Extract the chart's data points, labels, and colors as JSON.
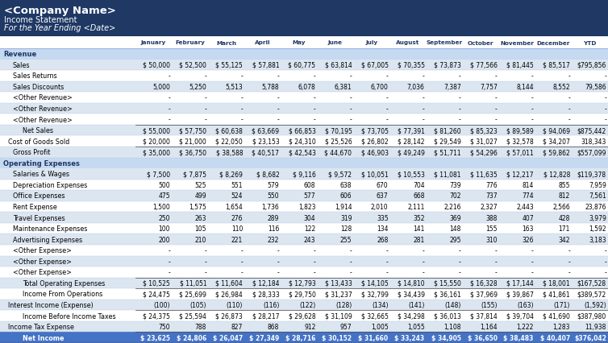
{
  "title1": "<Company Name>",
  "title2": "Income Statement",
  "title3": "For the Year Ending <Date>",
  "header_bg": "#1F3864",
  "header_text": "#FFFFFF",
  "columns": [
    "",
    "January",
    "February",
    "March",
    "April",
    "May",
    "June",
    "July",
    "August",
    "September",
    "October",
    "November",
    "December",
    "YTD"
  ],
  "section_bg": "#C5D9F1",
  "net_income_bg": "#4472C4",
  "rows": [
    {
      "label": "Revenue",
      "type": "section",
      "indent": 0,
      "values": []
    },
    {
      "label": "Sales",
      "type": "data",
      "indent": 2,
      "values": [
        "$ 50,000",
        "$ 52,500",
        "$ 55,125",
        "$ 57,881",
        "$ 60,775",
        "$ 63,814",
        "$ 67,005",
        "$ 70,355",
        "$ 73,873",
        "$ 77,566",
        "$ 81,445",
        "$ 85,517",
        "$795,856"
      ]
    },
    {
      "label": "Sales Returns",
      "type": "data_dash",
      "indent": 2,
      "values": [
        "-",
        "-",
        "-",
        "-",
        "-",
        "-",
        "-",
        "-",
        "-",
        "-",
        "-",
        "-",
        "-"
      ]
    },
    {
      "label": "Sales Discounts",
      "type": "data",
      "indent": 2,
      "values": [
        "5,000",
        "5,250",
        "5,513",
        "5,788",
        "6,078",
        "6,381",
        "6,700",
        "7,036",
        "7,387",
        "7,757",
        "8,144",
        "8,552",
        "79,586"
      ]
    },
    {
      "label": "<Other Revenue>",
      "type": "data_dash",
      "indent": 2,
      "values": [
        "-",
        "-",
        "-",
        "-",
        "-",
        "-",
        "-",
        "-",
        "-",
        "-",
        "-",
        "-",
        "-"
      ]
    },
    {
      "label": "<Other Revenue>",
      "type": "data_dash",
      "indent": 2,
      "values": [
        "-",
        "-",
        "-",
        "-",
        "-",
        "-",
        "-",
        "-",
        "-",
        "-",
        "-",
        "-",
        "-"
      ]
    },
    {
      "label": "<Other Revenue>",
      "type": "data_dash",
      "indent": 2,
      "values": [
        "-",
        "-",
        "-",
        "-",
        "-",
        "-",
        "-",
        "-",
        "-",
        "-",
        "-",
        "-",
        "-"
      ]
    },
    {
      "label": "Net Sales",
      "type": "subtotal",
      "indent": 4,
      "values": [
        "$ 55,000",
        "$ 57,750",
        "$ 60,638",
        "$ 63,669",
        "$ 66,853",
        "$ 70,195",
        "$ 73,705",
        "$ 77,391",
        "$ 81,260",
        "$ 85,323",
        "$ 89,589",
        "$ 94,069",
        "$875,442"
      ]
    },
    {
      "label": "Cost of Goods Sold",
      "type": "data",
      "indent": 1,
      "values": [
        "$ 20,000",
        "$ 21,000",
        "$ 22,050",
        "$ 23,153",
        "$ 24,310",
        "$ 25,526",
        "$ 26,802",
        "$ 28,142",
        "$ 29,549",
        "$ 31,027",
        "$ 32,578",
        "$ 34,207",
        "318,343"
      ]
    },
    {
      "label": "Gross Profit",
      "type": "subtotal",
      "indent": 2,
      "values": [
        "$ 35,000",
        "$ 36,750",
        "$ 38,588",
        "$ 40,517",
        "$ 42,543",
        "$ 44,670",
        "$ 46,903",
        "$ 49,249",
        "$ 51,711",
        "$ 54,296",
        "$ 57,011",
        "$ 59,862",
        "$557,099"
      ]
    },
    {
      "label": "Operating Expenses",
      "type": "section",
      "indent": 0,
      "values": []
    },
    {
      "label": "Salaries & Wages",
      "type": "data",
      "indent": 2,
      "values": [
        "$ 7,500",
        "$ 7,875",
        "$ 8,269",
        "$ 8,682",
        "$ 9,116",
        "$ 9,572",
        "$ 10,051",
        "$ 10,553",
        "$ 11,081",
        "$ 11,635",
        "$ 12,217",
        "$ 12,828",
        "$119,378"
      ]
    },
    {
      "label": "Depreciation Expenses",
      "type": "data",
      "indent": 2,
      "values": [
        "500",
        "525",
        "551",
        "579",
        "608",
        "638",
        "670",
        "704",
        "739",
        "776",
        "814",
        "855",
        "7,959"
      ]
    },
    {
      "label": "Office Expenses",
      "type": "data",
      "indent": 2,
      "values": [
        "475",
        "499",
        "524",
        "550",
        "577",
        "606",
        "637",
        "668",
        "702",
        "737",
        "774",
        "812",
        "7,561"
      ]
    },
    {
      "label": "Rent Expense",
      "type": "data",
      "indent": 2,
      "values": [
        "1,500",
        "1,575",
        "1,654",
        "1,736",
        "1,823",
        "1,914",
        "2,010",
        "2,111",
        "2,216",
        "2,327",
        "2,443",
        "2,566",
        "23,876"
      ]
    },
    {
      "label": "Travel Expenses",
      "type": "data",
      "indent": 2,
      "values": [
        "250",
        "263",
        "276",
        "289",
        "304",
        "319",
        "335",
        "352",
        "369",
        "388",
        "407",
        "428",
        "3,979"
      ]
    },
    {
      "label": "Maintenance Expenses",
      "type": "data",
      "indent": 2,
      "values": [
        "100",
        "105",
        "110",
        "116",
        "122",
        "128",
        "134",
        "141",
        "148",
        "155",
        "163",
        "171",
        "1,592"
      ]
    },
    {
      "label": "Advertising Expenses",
      "type": "data",
      "indent": 2,
      "values": [
        "200",
        "210",
        "221",
        "232",
        "243",
        "255",
        "268",
        "281",
        "295",
        "310",
        "326",
        "342",
        "3,183"
      ]
    },
    {
      "label": "<Other Expense>",
      "type": "data_dash",
      "indent": 2,
      "values": [
        "-",
        "-",
        "-",
        "-",
        "-",
        "-",
        "-",
        "-",
        "-",
        "-",
        "-",
        "-",
        "-"
      ]
    },
    {
      "label": "<Other Expense>",
      "type": "data_dash",
      "indent": 2,
      "values": [
        "-",
        "-",
        "-",
        "-",
        "-",
        "-",
        "-",
        "-",
        "-",
        "-",
        "-",
        "-",
        "-"
      ]
    },
    {
      "label": "<Other Expense>",
      "type": "data_dash",
      "indent": 2,
      "values": [
        "-",
        "-",
        "-",
        "-",
        "-",
        "-",
        "-",
        "-",
        "-",
        "-",
        "-",
        "-",
        "-"
      ]
    },
    {
      "label": "Total Operating Expenses",
      "type": "subtotal",
      "indent": 4,
      "values": [
        "$ 10,525",
        "$ 11,051",
        "$ 11,604",
        "$ 12,184",
        "$ 12,793",
        "$ 13,433",
        "$ 14,105",
        "$ 14,810",
        "$ 15,550",
        "$ 16,328",
        "$ 17,144",
        "$ 18,001",
        "$167,528"
      ]
    },
    {
      "label": "Income From Operations",
      "type": "subtotal",
      "indent": 4,
      "values": [
        "$ 24,475",
        "$ 25,699",
        "$ 26,984",
        "$ 28,333",
        "$ 29,750",
        "$ 31,237",
        "$ 32,799",
        "$ 34,439",
        "$ 36,161",
        "$ 37,969",
        "$ 39,867",
        "$ 41,861",
        "$389,572"
      ]
    },
    {
      "label": "Interest Income (Expense)",
      "type": "data",
      "indent": 1,
      "values": [
        "(100)",
        "(105)",
        "(110)",
        "(116)",
        "(122)",
        "(128)",
        "(134)",
        "(141)",
        "(148)",
        "(155)",
        "(163)",
        "(171)",
        "(1,592)"
      ]
    },
    {
      "label": "Income Before Income Taxes",
      "type": "subtotal",
      "indent": 4,
      "values": [
        "$ 24,375",
        "$ 25,594",
        "$ 26,873",
        "$ 28,217",
        "$ 29,628",
        "$ 31,109",
        "$ 32,665",
        "$ 34,298",
        "$ 36,013",
        "$ 37,814",
        "$ 39,704",
        "$ 41,690",
        "$387,980"
      ]
    },
    {
      "label": "Income Tax Expense",
      "type": "data",
      "indent": 1,
      "values": [
        "750",
        "788",
        "827",
        "868",
        "912",
        "957",
        "1,005",
        "1,055",
        "1,108",
        "1,164",
        "1,222",
        "1,283",
        "11,938"
      ]
    },
    {
      "label": "Net Income",
      "type": "net_income",
      "indent": 4,
      "values": [
        "$ 23,625",
        "$ 24,806",
        "$ 26,047",
        "$ 27,349",
        "$ 28,716",
        "$ 30,152",
        "$ 31,660",
        "$ 33,243",
        "$ 34,905",
        "$ 36,650",
        "$ 38,483",
        "$ 40,407",
        "$376,042"
      ]
    }
  ]
}
